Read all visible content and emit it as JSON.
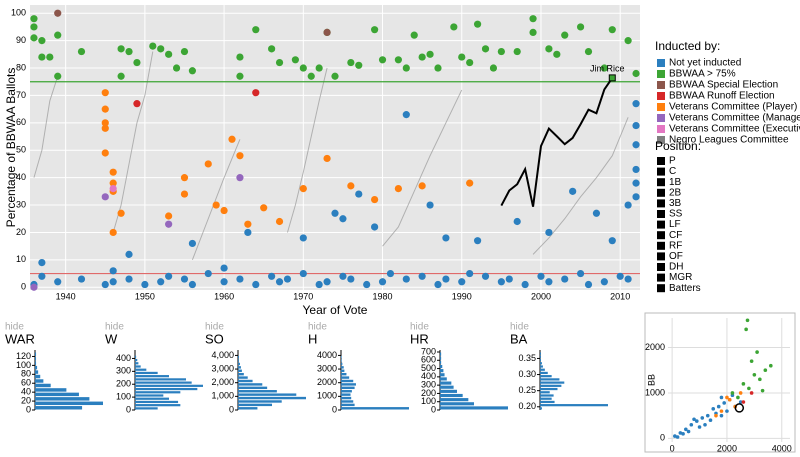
{
  "chart_data": [
    {
      "type": "scatter",
      "xlabel": "Year of Vote",
      "ylabel": "Percentage of BBWAA Ballots",
      "xlim": [
        1935.5,
        2012.5
      ],
      "xticks": [
        1940,
        1950,
        1960,
        1970,
        1980,
        1990,
        2000,
        2010
      ],
      "ylim": [
        -1,
        103
      ],
      "yticks": [
        0,
        10,
        20,
        30,
        40,
        50,
        60,
        70,
        80,
        90,
        100
      ],
      "grid": true,
      "legend_title": "Inducted by:",
      "reference_lines": [
        {
          "value": 75,
          "color": "#3ca534"
        },
        {
          "value": 5,
          "color": "#e06a6a"
        }
      ],
      "series": [
        {
          "name": "Not yet inducted",
          "color": "#2b7fbf",
          "x": [
            1936,
            1937,
            1939,
            1942,
            1945,
            1946,
            1946,
            1948,
            1950,
            1952,
            1953,
            1955,
            1956,
            1958,
            1960,
            1960,
            1962,
            1964,
            1966,
            1967,
            1968,
            1970,
            1972,
            1973,
            1975,
            1976,
            1978,
            1980,
            1981,
            1983,
            1985,
            1987,
            1988,
            1990,
            1991,
            1993,
            1995,
            1996,
            1998,
            2000,
            2001,
            2003,
            2005,
            2006,
            2008,
            2010,
            2011,
            2012,
            2012,
            2012,
            2012,
            1937,
            1948,
            1956,
            1963,
            1970,
            1974,
            1975,
            1977,
            1979,
            1983,
            1986,
            1988,
            1992,
            1997,
            2001,
            2004,
            2007,
            2009,
            2011,
            2012,
            2012
          ],
          "values": [
            1,
            4,
            2,
            3,
            1,
            6,
            2,
            3,
            1,
            2,
            4,
            3,
            1,
            5,
            2,
            7,
            3,
            1,
            4,
            2,
            3,
            5,
            1,
            2,
            4,
            3,
            1,
            2,
            5,
            3,
            4,
            1,
            3,
            2,
            5,
            4,
            2,
            3,
            1,
            4,
            2,
            3,
            5,
            1,
            2,
            4,
            3,
            67,
            59,
            52,
            38,
            9,
            12,
            16,
            20,
            18,
            27,
            25,
            34,
            22,
            63,
            30,
            18,
            17,
            24,
            20,
            35,
            27,
            17,
            30,
            43,
            33
          ]
        },
        {
          "name": "BBWAA > 75%",
          "color": "#3ca534",
          "x": [
            1936,
            1936,
            1936,
            1937,
            1937,
            1938,
            1939,
            1939,
            1942,
            1947,
            1947,
            1948,
            1949,
            1951,
            1952,
            1953,
            1954,
            1955,
            1956,
            1962,
            1962,
            1964,
            1966,
            1967,
            1969,
            1970,
            1971,
            1972,
            1973,
            1974,
            1976,
            1977,
            1979,
            1980,
            1982,
            1983,
            1984,
            1985,
            1986,
            1987,
            1989,
            1990,
            1991,
            1992,
            1993,
            1994,
            1995,
            1997,
            1999,
            1999,
            2001,
            2002,
            2003,
            2005,
            2006,
            2008,
            2009,
            2011,
            2012
          ],
          "values": [
            98,
            95,
            91,
            84,
            90,
            84,
            77,
            92,
            86,
            87,
            77,
            86,
            82,
            88,
            87,
            85,
            80,
            86,
            79,
            84,
            77,
            94,
            87,
            82,
            83,
            80,
            77,
            80,
            93,
            77,
            82,
            81,
            94,
            83,
            83,
            80,
            92,
            84,
            85,
            80,
            95,
            84,
            82,
            96,
            87,
            80,
            86,
            86,
            98,
            93,
            87,
            85,
            92,
            95,
            86,
            80,
            94,
            90,
            78
          ]
        },
        {
          "name": "BBWAA Special Election",
          "color": "#8c564b",
          "x": [
            1939,
            1973
          ],
          "values": [
            100,
            93
          ]
        },
        {
          "name": "BBWAA Runoff Election",
          "color": "#d62728",
          "x": [
            1949,
            1964
          ],
          "values": [
            67,
            71
          ]
        },
        {
          "name": "Veterans Committee (Player)",
          "color": "#ff7f0e",
          "x": [
            1945,
            1945,
            1945,
            1945,
            1946,
            1946,
            1946,
            1947,
            1953,
            1955,
            1958,
            1959,
            1961,
            1962,
            1963,
            1965,
            1967,
            1970,
            1973,
            1976,
            1979,
            1982,
            1985,
            1991,
            1945,
            1946,
            1955,
            1960
          ],
          "values": [
            71,
            65,
            58,
            49,
            42,
            38,
            35,
            27,
            26,
            40,
            45,
            30,
            54,
            48,
            23,
            29,
            24,
            36,
            47,
            37,
            32,
            36,
            37,
            38,
            60,
            20,
            34,
            28
          ]
        },
        {
          "name": "Veterans Committee (Manager)",
          "color": "#9467bd",
          "x": [
            1936,
            1945,
            1953,
            1962
          ],
          "values": [
            0,
            33,
            23,
            40
          ]
        },
        {
          "name": "Veterans Committee (Executive)",
          "color": "#e377c2",
          "x": [
            1946
          ],
          "values": [
            36
          ]
        },
        {
          "name": "Negro Leagues Committee",
          "color": "#7f7f7f",
          "x": [],
          "values": []
        }
      ],
      "trajectories": [
        {
          "x": [
            1936,
            1937,
            1938,
            1939
          ],
          "values": [
            40,
            50,
            68,
            77
          ]
        },
        {
          "x": [
            1946,
            1947,
            1948,
            1949,
            1950,
            1951
          ],
          "values": [
            20,
            30,
            45,
            60,
            70,
            86
          ]
        },
        {
          "x": [
            1956,
            1958,
            1960,
            1962
          ],
          "values": [
            10,
            25,
            40,
            54
          ]
        },
        {
          "x": [
            1968,
            1969,
            1970,
            1971,
            1972,
            1973
          ],
          "values": [
            20,
            30,
            42,
            55,
            68,
            80
          ]
        },
        {
          "x": [
            1980,
            1982,
            1984,
            1986,
            1988,
            1990
          ],
          "values": [
            15,
            22,
            35,
            48,
            60,
            72
          ]
        },
        {
          "x": [
            1999,
            2001,
            2003,
            2005,
            2007,
            2009,
            2011
          ],
          "values": [
            12,
            18,
            25,
            33,
            40,
            48,
            62
          ]
        }
      ],
      "highlight": {
        "name": "Jim Rice",
        "color": "#000000",
        "x": [
          1995,
          1996,
          1997,
          1998,
          1999,
          2000,
          2001,
          2002,
          2003,
          2004,
          2005,
          2006,
          2007,
          2008,
          2009
        ],
        "values": [
          29.8,
          35.3,
          37.6,
          43.1,
          29.4,
          51.5,
          57.9,
          55.1,
          52.2,
          54.5,
          59.5,
          64.8,
          63.5,
          72.2,
          76.4
        ]
      }
    },
    {
      "type": "histogram",
      "title": "WAR",
      "title_color": "#000000",
      "hide_label": "hide",
      "color": "#2b7fbf",
      "bins": [
        0,
        10,
        20,
        30,
        40,
        50,
        60,
        70,
        80,
        90,
        100,
        110,
        120,
        130
      ],
      "values": [
        45,
        65,
        52,
        42,
        30,
        15,
        8,
        5,
        3,
        2,
        1,
        1,
        1
      ],
      "ylim": [
        0,
        130
      ],
      "yticks": [
        0,
        20,
        40,
        60,
        80,
        100,
        120
      ]
    },
    {
      "type": "histogram",
      "title": "W",
      "title_color": "#2b7fbf",
      "hide_label": "hide",
      "color": "#2b7fbf",
      "bins": [
        0,
        25,
        50,
        75,
        100,
        125,
        150,
        175,
        200,
        225,
        250,
        275,
        300,
        325,
        350,
        375,
        400,
        425
      ],
      "values": [
        20,
        40,
        38,
        30,
        25,
        40,
        55,
        60,
        50,
        45,
        30,
        20,
        10,
        5,
        3,
        2,
        1
      ],
      "ylim": [
        0,
        450
      ],
      "yticks": [
        0,
        100,
        200,
        300,
        400
      ]
    },
    {
      "type": "histogram",
      "title": "SO",
      "title_color": "#1f7f7f",
      "hide_label": "hide",
      "color": "#2b7fbf",
      "bins": [
        0,
        250,
        500,
        750,
        1000,
        1250,
        1500,
        1750,
        2000,
        2250,
        2500,
        2750,
        3000,
        3250,
        3500,
        3750,
        4000
      ],
      "values": [
        20,
        35,
        45,
        70,
        60,
        40,
        30,
        25,
        15,
        10,
        6,
        4,
        3,
        2,
        1,
        1
      ],
      "ylim": [
        0,
        4250
      ],
      "yticks": [
        0,
        {
          "value": 1000,
          "label": "1,000"
        },
        {
          "value": 2000,
          "label": "2,000"
        },
        {
          "value": 3000,
          "label": "3,000"
        },
        {
          "value": 4000,
          "label": "4,000"
        }
      ]
    },
    {
      "type": "histogram",
      "title": "H",
      "title_color": "#2b7fbf",
      "hide_label": "hide",
      "color": "#2b7fbf",
      "bins": [
        0,
        250,
        500,
        750,
        1000,
        1250,
        1500,
        1750,
        2000,
        2250,
        2500,
        2750,
        3000,
        3250,
        3500,
        3750,
        4000
      ],
      "values": [
        100,
        20,
        18,
        15,
        14,
        16,
        20,
        22,
        18,
        12,
        8,
        5,
        4,
        2,
        1,
        1
      ],
      "ylim": [
        0,
        4250
      ],
      "yticks": [
        0,
        1000,
        2000,
        3000,
        4000
      ]
    },
    {
      "type": "histogram",
      "title": "HR",
      "title_color": "#2b7fbf",
      "hide_label": "hide",
      "color": "#2b7fbf",
      "bins": [
        0,
        50,
        100,
        150,
        200,
        250,
        300,
        350,
        400,
        450,
        500,
        550,
        600,
        650,
        700
      ],
      "values": [
        60,
        30,
        25,
        20,
        15,
        12,
        10,
        6,
        4,
        3,
        2,
        1,
        1,
        1
      ],
      "ylim": [
        0,
        700
      ],
      "yticks": [
        0,
        100,
        200,
        300,
        400,
        500,
        600,
        700
      ]
    },
    {
      "type": "histogram",
      "title": "BA",
      "title_color": "#2b7fbf",
      "hide_label": "hide",
      "color": "#2b7fbf",
      "bins": [
        0.19,
        0.2,
        0.21,
        0.22,
        0.23,
        0.24,
        0.25,
        0.26,
        0.27,
        0.28,
        0.29,
        0.3,
        0.31,
        0.32,
        0.33,
        0.34,
        0.35,
        0.36,
        0.37
      ],
      "values": [
        2,
        70,
        15,
        12,
        14,
        10,
        18,
        22,
        25,
        20,
        12,
        8,
        5,
        3,
        2,
        1,
        1,
        1
      ],
      "ylim": [
        0.19,
        0.37
      ],
      "yticks": [
        {
          "value": 0.2,
          "label": "0.20"
        },
        {
          "value": 0.25,
          "label": "0.25"
        },
        {
          "value": 0.3,
          "label": "0.30"
        },
        {
          "value": 0.35,
          "label": "0.35"
        }
      ]
    },
    {
      "type": "scatter",
      "ylabel": "BB",
      "xlim": [
        -150,
        4300
      ],
      "xticks": [
        0,
        2000,
        4000
      ],
      "ylim": [
        -80,
        2650
      ],
      "yticks": [
        0,
        1000,
        2000
      ],
      "grid": true,
      "series": [
        {
          "color": "#2b7fbf",
          "x": [
            100,
            300,
            500,
            700,
            900,
            1100,
            1300,
            1500,
            1700,
            1900,
            2100,
            1200,
            1600,
            1800,
            2000,
            2300,
            1400,
            1000,
            800,
            600,
            2500,
            400,
            200,
            1800,
            2200
          ],
          "values": [
            50,
            120,
            200,
            300,
            380,
            450,
            500,
            650,
            700,
            780,
            850,
            300,
            550,
            900,
            600,
            700,
            400,
            250,
            420,
            150,
            800,
            100,
            30,
            500,
            950
          ]
        },
        {
          "color": "#3ca534",
          "x": [
            2400,
            2600,
            2800,
            3000,
            3200,
            3400,
            2900,
            3100,
            2700,
            3600,
            2200,
            3300,
            2750
          ],
          "values": [
            900,
            1200,
            1100,
            1400,
            1300,
            1500,
            1700,
            1900,
            2400,
            1600,
            1000,
            1050,
            2600
          ]
        },
        {
          "color": "#ff7f0e",
          "x": [
            1800,
            2100,
            2300,
            2500,
            1600,
            2000
          ],
          "values": [
            600,
            850,
            700,
            1000,
            500,
            900
          ]
        },
        {
          "color": "#d62728",
          "x": [
            2600,
            2900
          ],
          "values": [
            800,
            1000
          ]
        }
      ],
      "highlight": {
        "color": "#000000",
        "x": 2452,
        "values": 670
      }
    }
  ],
  "position_filter": {
    "title": "Position:",
    "items": [
      "P",
      "C",
      "1B",
      "2B",
      "3B",
      "SS",
      "LF",
      "CF",
      "RF",
      "OF",
      "DH",
      "MGR",
      "Batters"
    ]
  }
}
